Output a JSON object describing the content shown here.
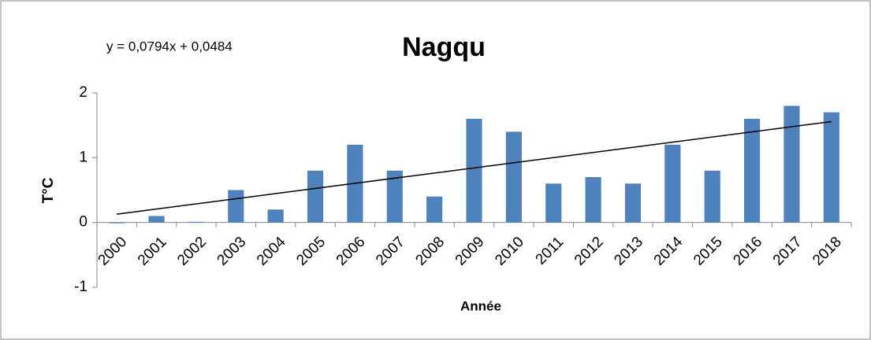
{
  "chart_data": {
    "type": "bar",
    "title": "Nagqu",
    "xlabel": "Année",
    "ylabel": "T°C",
    "categories": [
      "2000",
      "2001",
      "2002",
      "2003",
      "2004",
      "2005",
      "2006",
      "2007",
      "2008",
      "2009",
      "2010",
      "2011",
      "2012",
      "2013",
      "2014",
      "2015",
      "2016",
      "2017",
      "2018"
    ],
    "values": [
      -0.01,
      0.1,
      0.01,
      0.5,
      0.2,
      0.8,
      1.2,
      0.8,
      0.4,
      1.6,
      1.4,
      0.6,
      0.7,
      0.6,
      1.2,
      0.8,
      1.6,
      1.8,
      1.7
    ],
    "color": "#4f81bd",
    "ylim": [
      -1,
      2
    ],
    "yticks": [
      -1,
      0,
      1,
      2
    ],
    "grid": false,
    "trendline": {
      "label": "y = 0,0794x + 0,0484",
      "slope": 0.0794,
      "intercept": 0.0484,
      "color": "#000000"
    }
  }
}
